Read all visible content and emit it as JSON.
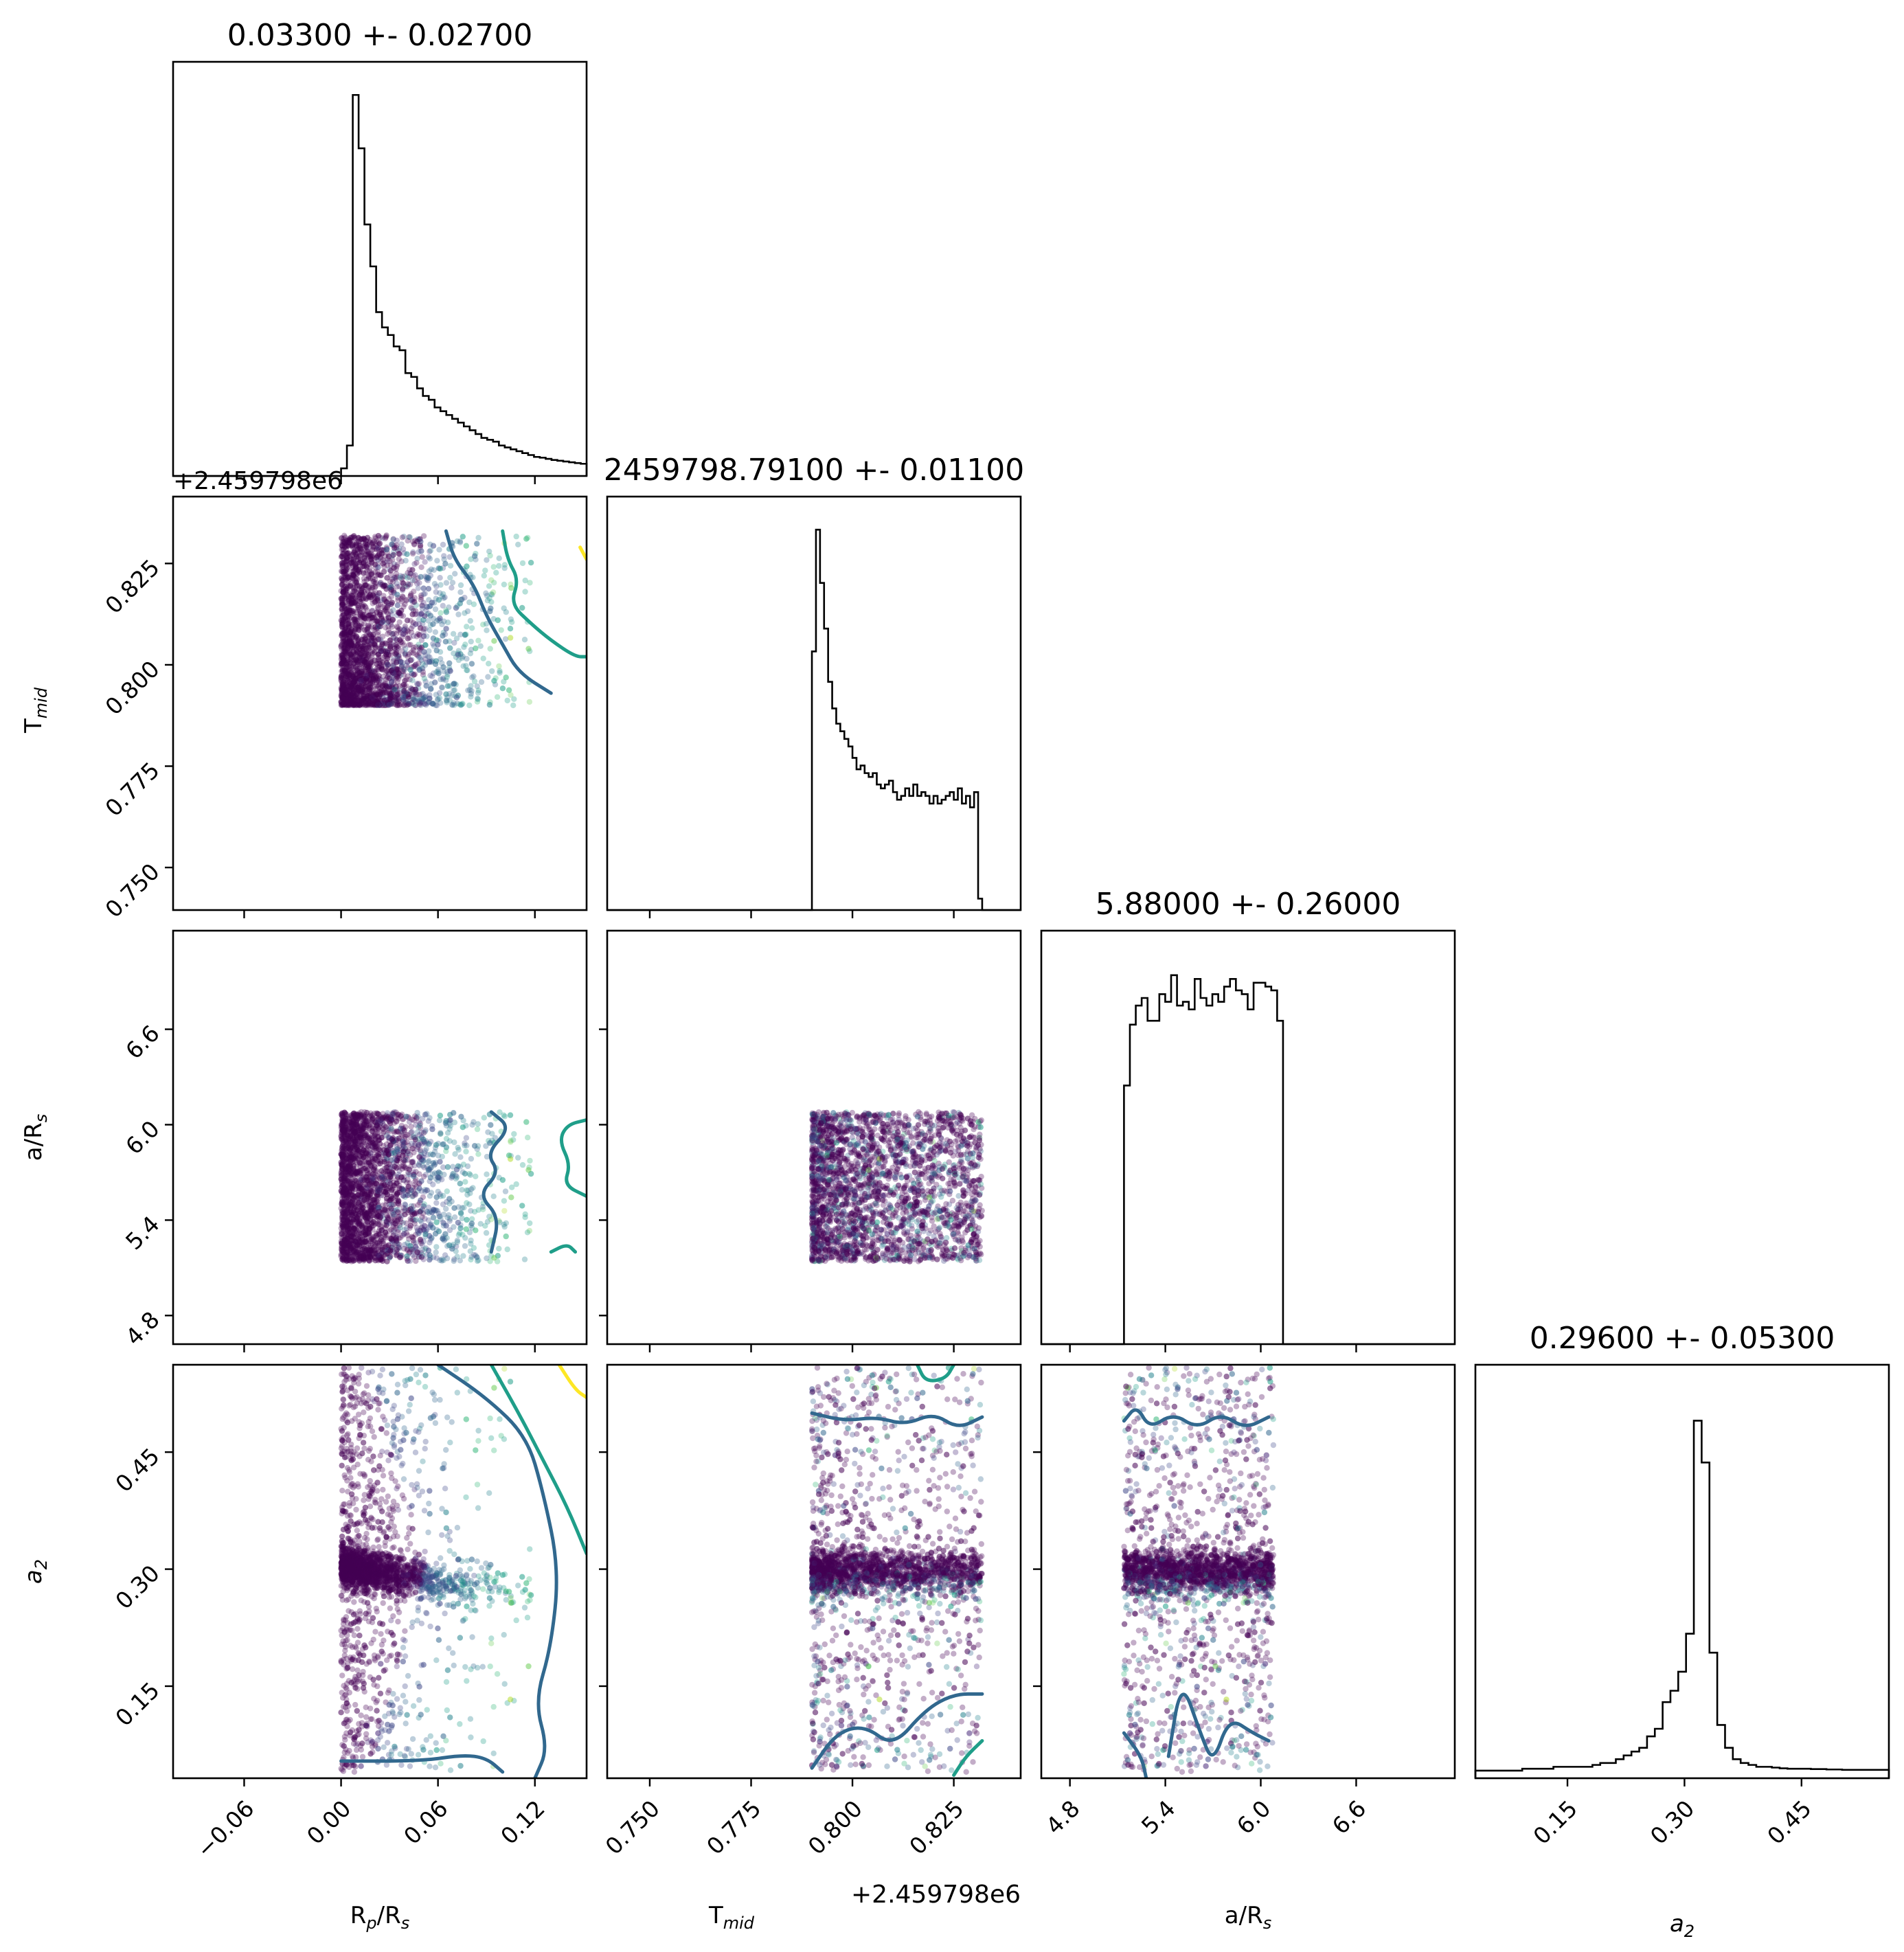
{
  "chart_data": {
    "type": "corner",
    "parameters": [
      {
        "key": "rp",
        "label_main": "R",
        "label_sub": "p",
        "label_tail": "/R",
        "label_sub2": "s",
        "range": [
          -0.104,
          0.152
        ],
        "ticks": [
          -0.06,
          0.0,
          0.06,
          0.12
        ],
        "tick_labels": [
          "−0.06",
          "0.00",
          "0.06",
          "0.12"
        ]
      },
      {
        "key": "tmid",
        "label_main": "T",
        "label_sub": "mid",
        "label_tail": "",
        "label_sub2": "",
        "range": [
          0.7395,
          0.8415
        ],
        "ticks": [
          0.75,
          0.775,
          0.8,
          0.825
        ],
        "tick_labels": [
          "0.750",
          "0.775",
          "0.800",
          "0.825"
        ],
        "offset_text": "+2.459798e6"
      },
      {
        "key": "ars",
        "label_main": "a/R",
        "label_sub": "s",
        "label_tail": "",
        "label_sub2": "",
        "range": [
          4.62,
          7.22
        ],
        "ticks": [
          4.8,
          5.4,
          6.0,
          6.6
        ],
        "tick_labels": [
          "4.8",
          "5.4",
          "6.0",
          "6.6"
        ]
      },
      {
        "key": "a2",
        "label_main": "a",
        "label_sub": "2",
        "label_tail": "",
        "label_sub2": "",
        "italic": true,
        "range": [
          0.032,
          0.562
        ],
        "ticks": [
          0.15,
          0.3,
          0.45
        ],
        "tick_labels": [
          "0.15",
          "0.30",
          "0.45"
        ]
      }
    ],
    "titles": [
      "0.03300 +- 0.02700",
      "2459798.79100 +- 0.01100",
      "5.88000 +- 0.26000",
      "0.29600 +- 0.05300"
    ],
    "marginals": [
      {
        "param": "rp",
        "bin_edges_range": [
          0.0,
          0.152
        ],
        "counts": [
          0.02,
          0.08,
          1.0,
          0.86,
          0.66,
          0.55,
          0.43,
          0.39,
          0.37,
          0.34,
          0.33,
          0.27,
          0.26,
          0.23,
          0.21,
          0.2,
          0.18,
          0.17,
          0.16,
          0.15,
          0.14,
          0.13,
          0.12,
          0.11,
          0.1,
          0.095,
          0.09,
          0.08,
          0.075,
          0.07,
          0.065,
          0.06,
          0.055,
          0.05,
          0.048,
          0.045,
          0.042,
          0.04,
          0.038,
          0.036,
          0.034,
          0.032
        ]
      },
      {
        "param": "tmid",
        "bin_edges_range": [
          0.79,
          0.832
        ],
        "counts": [
          0.68,
          1.0,
          0.86,
          0.74,
          0.6,
          0.53,
          0.49,
          0.47,
          0.45,
          0.43,
          0.4,
          0.37,
          0.38,
          0.36,
          0.35,
          0.36,
          0.33,
          0.32,
          0.33,
          0.34,
          0.31,
          0.29,
          0.3,
          0.32,
          0.3,
          0.33,
          0.3,
          0.31,
          0.3,
          0.28,
          0.3,
          0.28,
          0.29,
          0.3,
          0.31,
          0.29,
          0.32,
          0.28,
          0.3,
          0.27,
          0.31,
          0.03
        ]
      },
      {
        "param": "ars",
        "bin_edges_range": [
          5.14,
          6.14
        ],
        "counts": [
          0.68,
          0.84,
          0.89,
          0.91,
          0.85,
          0.85,
          0.92,
          0.9,
          0.97,
          0.89,
          0.9,
          0.88,
          0.96,
          0.91,
          0.89,
          0.92,
          0.9,
          0.94,
          0.96,
          0.93,
          0.92,
          0.88,
          0.95,
          0.95,
          0.94,
          0.93,
          0.85
        ]
      },
      {
        "param": "a2",
        "bin_edges_range": [
          0.032,
          0.562
        ],
        "counts": [
          0.02,
          0.02,
          0.02,
          0.02,
          0.02,
          0.02,
          0.025,
          0.025,
          0.025,
          0.025,
          0.03,
          0.03,
          0.03,
          0.03,
          0.03,
          0.035,
          0.04,
          0.04,
          0.05,
          0.06,
          0.07,
          0.08,
          0.11,
          0.13,
          0.2,
          0.23,
          0.28,
          0.38,
          0.94,
          0.83,
          0.33,
          0.14,
          0.08,
          0.05,
          0.04,
          0.035,
          0.03,
          0.03,
          0.028,
          0.026,
          0.025,
          0.025,
          0.025,
          0.024,
          0.024,
          0.023,
          0.023,
          0.022,
          0.022,
          0.022,
          0.022,
          0.022,
          0.022
        ]
      }
    ],
    "scatter_cmap": "viridis",
    "contour_colors": [
      "#31688e",
      "#1f9e89",
      "#fde725"
    ]
  }
}
